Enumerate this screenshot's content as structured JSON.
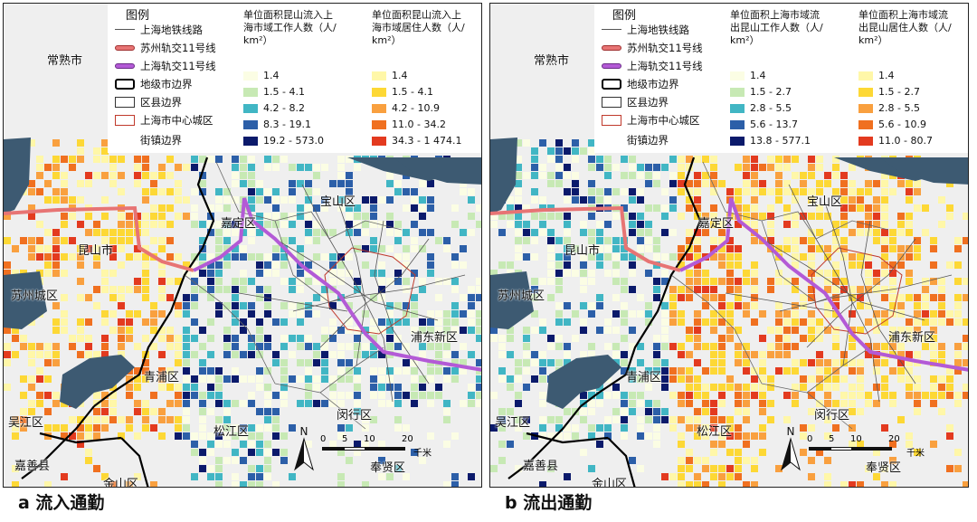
{
  "panels": [
    {
      "id": "a",
      "caption": "a 流入通勤",
      "legend": {
        "title": "图例",
        "items": [
          {
            "label": "上海地铁线路",
            "symbol": "thin-line",
            "color": "#555555"
          },
          {
            "label": "苏州轨交11号线",
            "symbol": "thick-line",
            "color": "#e77474"
          },
          {
            "label": "上海轨交11号线",
            "symbol": "thick-line",
            "color": "#b35ad6"
          },
          {
            "label": "地级市边界",
            "symbol": "bold-border",
            "color": "#000000"
          },
          {
            "label": "区县边界",
            "symbol": "box",
            "color": "#333333"
          },
          {
            "label": "上海市中心城区",
            "symbol": "box",
            "color": "#c0392b"
          },
          {
            "label": "街镇边界",
            "symbol": "none",
            "color": "#888888"
          }
        ],
        "columns": [
          {
            "heading_lines": [
              "单位面积昆山流入上",
              "海市域工作人数（人/",
              "km²）"
            ],
            "classes": [
              {
                "label": "1.4",
                "color": "#fbfde4"
              },
              {
                "label": "1.5 - 4.1",
                "color": "#c7e9b4"
              },
              {
                "label": "4.2 - 8.2",
                "color": "#41b6c4"
              },
              {
                "label": "8.3 - 19.1",
                "color": "#2c5fa8"
              },
              {
                "label": "19.2 - 573.0",
                "color": "#0b1a6b"
              }
            ]
          },
          {
            "heading_lines": [
              "单位面积昆山流入上",
              "海市域居住人数（人/",
              "km²）"
            ],
            "classes": [
              {
                "label": "1.4",
                "color": "#fff7a8"
              },
              {
                "label": "1.5 - 4.1",
                "color": "#fdd835"
              },
              {
                "label": "4.2 - 10.9",
                "color": "#f9a03f"
              },
              {
                "label": "11.0 - 34.2",
                "color": "#f07020"
              },
              {
                "label": "34.3 - 1 474.1",
                "color": "#e33a1f"
              }
            ]
          }
        ]
      },
      "places": [
        {
          "name": "常熟市"
        },
        {
          "name": "宝山区"
        },
        {
          "name": "嘉定区"
        },
        {
          "name": "昆山市"
        },
        {
          "name": "苏州城区"
        },
        {
          "name": "浦东新区"
        },
        {
          "name": "青浦区"
        },
        {
          "name": "闵行区"
        },
        {
          "name": "吴江区"
        },
        {
          "name": "松江区"
        },
        {
          "name": "嘉善县"
        },
        {
          "name": "金山区"
        },
        {
          "name": "奉贤区"
        }
      ],
      "scale": {
        "ticks": [
          "0",
          "5",
          "10",
          "20"
        ],
        "unit": "千米"
      },
      "north": "N"
    },
    {
      "id": "b",
      "caption": "b 流出通勤",
      "legend": {
        "title": "图例",
        "items": [
          {
            "label": "上海地铁线路",
            "symbol": "thin-line",
            "color": "#555555"
          },
          {
            "label": "苏州轨交11号线",
            "symbol": "thick-line",
            "color": "#e77474"
          },
          {
            "label": "上海轨交11号线",
            "symbol": "thick-line",
            "color": "#b35ad6"
          },
          {
            "label": "地级市边界",
            "symbol": "bold-border",
            "color": "#000000"
          },
          {
            "label": "区县边界",
            "symbol": "box",
            "color": "#333333"
          },
          {
            "label": "上海市中心城区",
            "symbol": "box",
            "color": "#c0392b"
          },
          {
            "label": "街镇边界",
            "symbol": "none",
            "color": "#888888"
          }
        ],
        "columns": [
          {
            "heading_lines": [
              "单位面积上海市域流",
              "出昆山工作人数（人/",
              "km²）"
            ],
            "classes": [
              {
                "label": "1.4",
                "color": "#fbfde4"
              },
              {
                "label": "1.5 - 2.7",
                "color": "#c7e9b4"
              },
              {
                "label": "2.8 - 5.5",
                "color": "#41b6c4"
              },
              {
                "label": "5.6 - 13.7",
                "color": "#2c5fa8"
              },
              {
                "label": "13.8 - 577.1",
                "color": "#0b1a6b"
              }
            ]
          },
          {
            "heading_lines": [
              "单位面积上海市域流",
              "出昆山居住人数（人/",
              "km²）"
            ],
            "classes": [
              {
                "label": "1.4",
                "color": "#fff7a8"
              },
              {
                "label": "1.5 - 2.7",
                "color": "#fdd835"
              },
              {
                "label": "2.8 - 5.5",
                "color": "#f9a03f"
              },
              {
                "label": "5.6 - 10.9",
                "color": "#f07020"
              },
              {
                "label": "11.0 - 80.7",
                "color": "#e33a1f"
              }
            ]
          }
        ]
      },
      "places": [
        {
          "name": "常熟市"
        },
        {
          "name": "宝山区"
        },
        {
          "name": "嘉定区"
        },
        {
          "name": "昆山市"
        },
        {
          "name": "苏州城区"
        },
        {
          "name": "浦东新区"
        },
        {
          "name": "青浦区"
        },
        {
          "name": "闵行区"
        },
        {
          "name": "吴江区"
        },
        {
          "name": "松江区"
        },
        {
          "name": "嘉善县"
        },
        {
          "name": "金山区"
        },
        {
          "name": "奉贤区"
        }
      ],
      "scale": {
        "ticks": [
          "0",
          "5",
          "10",
          "20"
        ],
        "unit": "千米"
      },
      "north": "N"
    }
  ],
  "colors": {
    "water": "#3d5a72",
    "background": "#efefef",
    "metro": "#555555",
    "suzhou_line11": "#e77474",
    "shanghai_line11": "#b35ad6"
  }
}
